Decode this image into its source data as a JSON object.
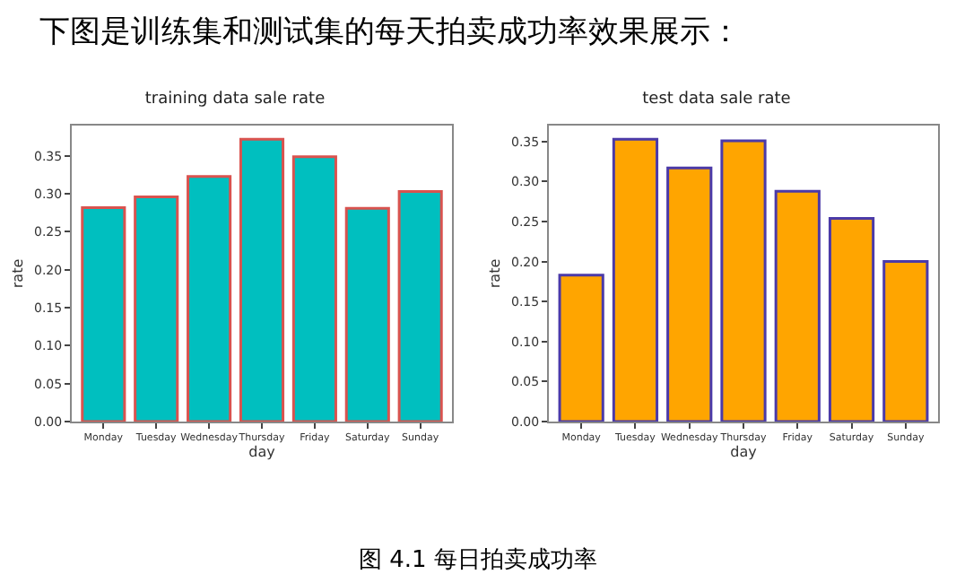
{
  "chart_data": [
    {
      "type": "bar",
      "title": "training data sale rate",
      "xlabel": "day",
      "ylabel": "rate",
      "categories": [
        "Monday",
        "Tuesday",
        "Wednesday",
        "Thursday",
        "Friday",
        "Saturday",
        "Sunday"
      ],
      "series": [
        {
          "color": "#00bfbf",
          "values": [
            0.282,
            0.296,
            0.323,
            0.372,
            0.349,
            0.281,
            0.303
          ]
        }
      ],
      "ylim": [
        0,
        0.39
      ],
      "yticks": [
        {
          "value": 0,
          "label": "0.00"
        },
        {
          "value": 0.05,
          "label": "0.05"
        },
        {
          "value": 0.1,
          "label": "0.10"
        },
        {
          "value": 0.15,
          "label": "0.15"
        },
        {
          "value": 0.2,
          "label": "0.20"
        },
        {
          "value": 0.25,
          "label": "0.25"
        },
        {
          "value": 0.3,
          "label": "0.30"
        },
        {
          "value": 0.35,
          "label": "0.35"
        }
      ],
      "annotations": [
        "下图是训练集和测试集的每天拍卖成功率效果展示："
      ]
    },
    {
      "type": "bar",
      "title": "test data sale rate",
      "xlabel": "day",
      "ylabel": "rate",
      "categories": [
        "Monday",
        "Tuesday",
        "Wednesday",
        "Thursday",
        "Friday",
        "Saturday",
        "Sunday"
      ],
      "series": [
        {
          "color": "#ffa500",
          "values": [
            0.183,
            0.353,
            0.317,
            0.351,
            0.288,
            0.254,
            0.2
          ]
        }
      ],
      "ylim": [
        0,
        0.37
      ],
      "yticks": [
        {
          "value": 0,
          "label": "0.00"
        },
        {
          "value": 0.05,
          "label": "0.05"
        },
        {
          "value": 0.1,
          "label": "0.10"
        },
        {
          "value": 0.15,
          "label": "0.15"
        },
        {
          "value": 0.2,
          "label": "0.20"
        },
        {
          "value": 0.25,
          "label": "0.25"
        },
        {
          "value": 0.3,
          "label": "0.30"
        },
        {
          "value": 0.35,
          "label": "0.35"
        }
      ],
      "annotations": [
        "图 4.1  每日拍卖成功率"
      ]
    }
  ]
}
